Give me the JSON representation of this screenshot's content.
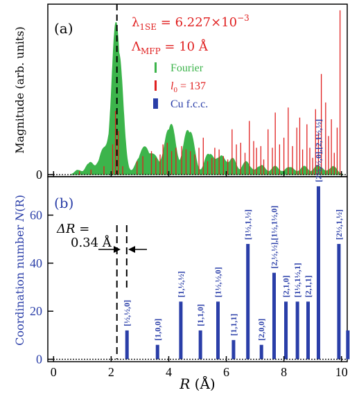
{
  "colors": {
    "fourier": "#3cb44b",
    "l0": "#e02020",
    "cu": "#2a3ea8",
    "axis": "#000000"
  },
  "chart_data": [
    {
      "id": "a",
      "type": "area",
      "panel_label": "(a)",
      "ylabel": "Magnitude (arb. units)",
      "xlim": [
        -0.2,
        10.2
      ],
      "ylim": [
        0,
        1
      ],
      "yticks": [
        0
      ],
      "annotation_lambda": "λ",
      "annotation_lambda_sub": "1SE",
      "annotation_lambda_value": " = 6.227×10",
      "annotation_lambda_exp": "−3",
      "annotation_mfp": "Λ",
      "annotation_mfp_sub": "MFP",
      "annotation_mfp_value": " = 10 Å",
      "legend": [
        {
          "name": "Fourier",
          "color": "#3cb44b"
        },
        {
          "name": "l0 = 137",
          "label_main": "l",
          "label_sub": "0",
          "label_rest": " = 137",
          "color": "#e02020"
        },
        {
          "name": "Cu f.c.c.",
          "color": "#2a3ea8"
        }
      ],
      "fourier_peaks": [
        {
          "r": 0.85,
          "a": 0.03,
          "w": 0.1
        },
        {
          "r": 1.25,
          "a": 0.08,
          "w": 0.12
        },
        {
          "r": 1.7,
          "a": 0.14,
          "w": 0.15
        },
        {
          "r": 2.2,
          "a": 0.96,
          "w": 0.17
        },
        {
          "r": 3.0,
          "a": 0.1,
          "w": 0.15
        },
        {
          "r": 3.25,
          "a": 0.13,
          "w": 0.15
        },
        {
          "r": 3.55,
          "a": 0.09,
          "w": 0.14
        },
        {
          "r": 4.05,
          "a": 0.33,
          "w": 0.17
        },
        {
          "r": 4.7,
          "a": 0.3,
          "w": 0.17
        },
        {
          "r": 5.4,
          "a": 0.14,
          "w": 0.14
        },
        {
          "r": 5.8,
          "a": 0.12,
          "w": 0.14
        },
        {
          "r": 6.2,
          "a": 0.1,
          "w": 0.14
        },
        {
          "r": 6.7,
          "a": 0.08,
          "w": 0.14
        },
        {
          "r": 7.2,
          "a": 0.06,
          "w": 0.14
        },
        {
          "r": 7.7,
          "a": 0.05,
          "w": 0.14
        },
        {
          "r": 8.2,
          "a": 0.05,
          "w": 0.14
        },
        {
          "r": 8.7,
          "a": 0.05,
          "w": 0.14
        },
        {
          "r": 9.2,
          "a": 0.06,
          "w": 0.14
        },
        {
          "r": 9.7,
          "a": 0.05,
          "w": 0.14
        }
      ],
      "l0_lines": [
        [
          0.9,
          0.02
        ],
        [
          1.3,
          0.03
        ],
        [
          1.75,
          0.05
        ],
        [
          2.05,
          0.18
        ],
        [
          2.15,
          0.38
        ],
        [
          2.25,
          0.26
        ],
        [
          2.4,
          0.05
        ],
        [
          2.9,
          0.08
        ],
        [
          3.1,
          0.11
        ],
        [
          3.4,
          0.14
        ],
        [
          3.55,
          0.1
        ],
        [
          3.7,
          0.12
        ],
        [
          3.8,
          0.18
        ],
        [
          3.95,
          0.19
        ],
        [
          4.1,
          0.14
        ],
        [
          4.25,
          0.16
        ],
        [
          4.45,
          0.17
        ],
        [
          4.6,
          0.15
        ],
        [
          4.75,
          0.14
        ],
        [
          4.9,
          0.12
        ],
        [
          5.05,
          0.16
        ],
        [
          5.2,
          0.22
        ],
        [
          5.35,
          0.08
        ],
        [
          5.5,
          0.1
        ],
        [
          5.6,
          0.16
        ],
        [
          5.75,
          0.15
        ],
        [
          5.9,
          0.11
        ],
        [
          6.05,
          0.09
        ],
        [
          6.2,
          0.27
        ],
        [
          6.35,
          0.18
        ],
        [
          6.5,
          0.19
        ],
        [
          6.65,
          0.13
        ],
        [
          6.8,
          0.32
        ],
        [
          6.95,
          0.2
        ],
        [
          7.05,
          0.16
        ],
        [
          7.2,
          0.17
        ],
        [
          7.3,
          0.09
        ],
        [
          7.45,
          0.27
        ],
        [
          7.6,
          0.16
        ],
        [
          7.7,
          0.37
        ],
        [
          7.85,
          0.18
        ],
        [
          8.0,
          0.22
        ],
        [
          8.15,
          0.4
        ],
        [
          8.3,
          0.17
        ],
        [
          8.45,
          0.28
        ],
        [
          8.55,
          0.34
        ],
        [
          8.65,
          0.15
        ],
        [
          8.8,
          0.3
        ],
        [
          8.9,
          0.16
        ],
        [
          9.0,
          0.1
        ],
        [
          9.1,
          0.39
        ],
        [
          9.2,
          0.25
        ],
        [
          9.3,
          0.6
        ],
        [
          9.45,
          0.43
        ],
        [
          9.55,
          0.23
        ],
        [
          9.65,
          0.33
        ],
        [
          9.75,
          0.13
        ],
        [
          9.85,
          0.28
        ],
        [
          9.95,
          0.98
        ]
      ],
      "dashed_line_r": 2.2
    },
    {
      "id": "b",
      "type": "bar",
      "panel_label": "(b)",
      "ylabel": "Coordination number N(R)",
      "ylabel_pre": "Coordination number ",
      "ylabel_italic": "N",
      "ylabel_post": "(R)",
      "xlabel_italic": "R",
      "xlabel_rest": " (Å)",
      "xlim": [
        -0.2,
        10.2
      ],
      "ylim": [
        -1,
        76
      ],
      "xticks": [
        0,
        2,
        4,
        6,
        8,
        10
      ],
      "yticks": [
        0,
        20,
        40,
        60
      ],
      "delta_label_line1": "ΔR =",
      "delta_label_line2": "0.34 Å",
      "dashed_lines_r": [
        2.2,
        2.54
      ],
      "shells": [
        {
          "r": 2.55,
          "n": 12,
          "label": "[½,½,0]"
        },
        {
          "r": 3.61,
          "n": 6,
          "label": "[1,0,0]"
        },
        {
          "r": 4.42,
          "n": 24,
          "label": "[1,½,½]"
        },
        {
          "r": 5.1,
          "n": 12,
          "label": "[1,1,0]"
        },
        {
          "r": 5.71,
          "n": 24,
          "label": "[1½,½,0]"
        },
        {
          "r": 6.25,
          "n": 8,
          "label": "[1,1,1]"
        },
        {
          "r": 6.75,
          "n": 48,
          "label": "[1½,1,½]"
        },
        {
          "r": 7.22,
          "n": 6,
          "label": "[2,0,0]"
        },
        {
          "r": 7.66,
          "n": 36,
          "label": "[2,½,½],[1½,1½,0]"
        },
        {
          "r": 8.07,
          "n": 24,
          "label": "[2,1,0]"
        },
        {
          "r": 8.47,
          "n": 24,
          "label": "[1½,1½,1]"
        },
        {
          "r": 8.84,
          "n": 24,
          "label": "[2,1,1]"
        },
        {
          "r": 9.2,
          "n": 72,
          "label": "[2½,½,0],[2,1½,½]"
        },
        {
          "r": 9.91,
          "n": 48,
          "label": "[2½,1,½]"
        },
        {
          "r": 10.22,
          "n": 12,
          "label": ""
        }
      ]
    }
  ]
}
